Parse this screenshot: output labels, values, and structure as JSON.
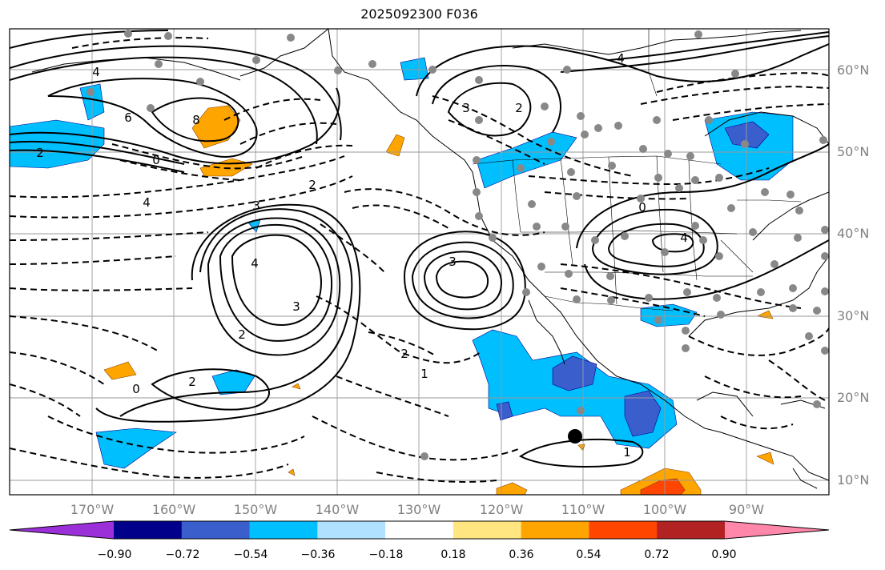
{
  "title": "2025092300 F036",
  "lat_labels": [
    "60°N",
    "50°N",
    "40°N",
    "30°N",
    "20°N",
    "10°N"
  ],
  "lon_labels": [
    "170°W",
    "160°W",
    "150°W",
    "140°W",
    "130°W",
    "120°W",
    "110°W",
    "100°W",
    "90°W"
  ],
  "colorbar": {
    "ticks": [
      "−0.90",
      "−0.72",
      "−0.54",
      "−0.36",
      "−0.18",
      "0.18",
      "0.36",
      "0.54",
      "0.72",
      "0.90"
    ],
    "colors": [
      "#9b30d9",
      "#00008b",
      "#3a5fcd",
      "#00bfff",
      "#b0e2ff",
      "#ffffff",
      "#ffe680",
      "#ffa500",
      "#ff4500",
      "#b22222",
      "#ff88aa"
    ]
  },
  "contour_labels": [
    "4",
    "6",
    "8",
    "2",
    "3",
    "2",
    "0",
    "4",
    "2",
    "3",
    "4",
    "3",
    "2",
    "1",
    "0",
    "2",
    "4",
    "0",
    "1",
    "2",
    "3",
    "4"
  ],
  "colors": {
    "negative_shade": "#00bfff",
    "strong_negative": "#3a5fcd",
    "positive_shade": "#ffa500",
    "strong_positive": "#ff4500",
    "station": "#888888"
  }
}
